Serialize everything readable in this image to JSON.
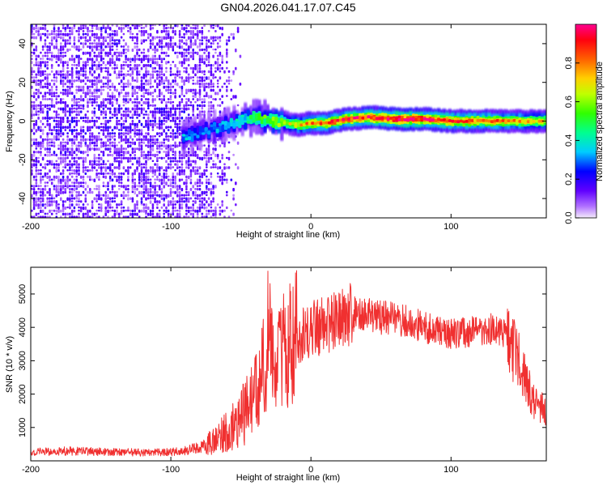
{
  "title": "GN04.2026.041.17.07.C45",
  "chart_data": [
    {
      "type": "heatmap",
      "id": "spectrogram",
      "xlabel": "Height of straight line (km)",
      "ylabel": "Frequency (Hz)",
      "xlim": [
        -200,
        168
      ],
      "ylim": [
        -50,
        50
      ],
      "xticks": [
        -200,
        -100,
        0,
        100
      ],
      "yticks": [
        -40,
        -20,
        0,
        20,
        40
      ],
      "colorbar": {
        "label": "Normalized spectral amplitude",
        "range": [
          0,
          1
        ],
        "ticks": [
          0.0,
          0.2,
          0.4,
          0.6,
          0.8
        ]
      },
      "features": {
        "noise_region_km": [
          -200,
          -60
        ],
        "signal_track": [
          {
            "x": -92,
            "f": -8,
            "a": 0.35
          },
          {
            "x": -80,
            "f": -6,
            "a": 0.3
          },
          {
            "x": -65,
            "f": -3,
            "a": 0.35
          },
          {
            "x": -50,
            "f": 1,
            "a": 0.4
          },
          {
            "x": -40,
            "f": 2,
            "a": 0.55
          },
          {
            "x": -25,
            "f": 0,
            "a": 0.6
          },
          {
            "x": -10,
            "f": -2,
            "a": 0.7
          },
          {
            "x": 0,
            "f": -1,
            "a": 0.8
          },
          {
            "x": 10,
            "f": -1,
            "a": 0.85
          },
          {
            "x": 25,
            "f": 1,
            "a": 0.9
          },
          {
            "x": 40,
            "f": 2,
            "a": 0.9
          },
          {
            "x": 60,
            "f": 1,
            "a": 1.0
          },
          {
            "x": 80,
            "f": 1,
            "a": 0.95
          },
          {
            "x": 100,
            "f": 0,
            "a": 0.85
          },
          {
            "x": 130,
            "f": 0,
            "a": 0.8
          },
          {
            "x": 168,
            "f": 0,
            "a": 0.7
          }
        ]
      }
    },
    {
      "type": "line",
      "id": "snr",
      "xlabel": "Height of straight line (km)",
      "ylabel": "SNR (10 * v/v)",
      "xlim": [
        -200,
        168
      ],
      "ylim": [
        0,
        5800
      ],
      "xticks": [
        -200,
        -100,
        0,
        100
      ],
      "yticks": [
        1000,
        2000,
        3000,
        4000,
        5000
      ],
      "color": "#f03030",
      "series": [
        {
          "name": "SNR envelope",
          "x": [
            -200,
            -180,
            -160,
            -140,
            -120,
            -100,
            -90,
            -80,
            -70,
            -60,
            -50,
            -40,
            -35,
            -30,
            -25,
            -20,
            -15,
            -10,
            -5,
            0,
            10,
            20,
            30,
            40,
            50,
            60,
            70,
            80,
            90,
            100,
            110,
            120,
            130,
            135,
            140,
            145,
            150,
            155,
            160,
            168
          ],
          "values": [
            250,
            300,
            280,
            260,
            250,
            260,
            300,
            400,
            600,
            900,
            1300,
            2000,
            2600,
            3300,
            2800,
            3200,
            3500,
            3700,
            3800,
            3900,
            4100,
            4200,
            4400,
            4400,
            4300,
            4250,
            4200,
            4000,
            3900,
            3800,
            3850,
            3900,
            3950,
            3900,
            3700,
            3300,
            2800,
            2200,
            1700,
            1500
          ]
        }
      ]
    }
  ]
}
